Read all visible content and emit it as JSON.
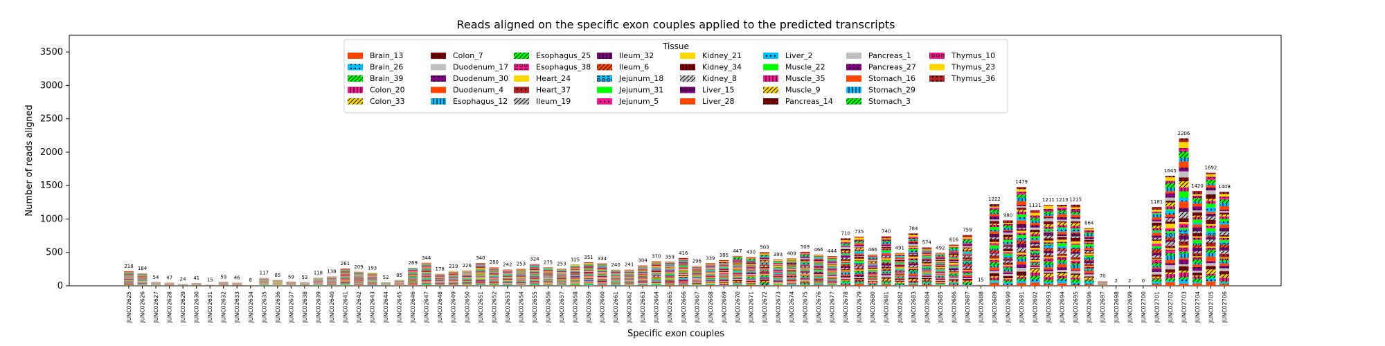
{
  "chart_data": {
    "type": "bar",
    "stacked": true,
    "title": "Reads aligned on the specific exon couples applied to the predicted transcripts",
    "xlabel": "Specific exon couples",
    "ylabel": "Number of reads aligned",
    "ylim": [
      0,
      3750
    ],
    "yticks": [
      0,
      500,
      1000,
      1500,
      2000,
      2500,
      3000,
      3500
    ],
    "legend": {
      "title": "Tissue",
      "placement": "top-center",
      "entries": [
        {
          "label": "Brain_13",
          "color": "#ff4500",
          "hatch": "none"
        },
        {
          "label": "Brain_26",
          "color": "#00bfff",
          "hatch": "dot"
        },
        {
          "label": "Brain_39",
          "color": "#00ff00",
          "hatch": "slash"
        },
        {
          "label": "Colon_20",
          "color": "#ff1493",
          "hatch": "bars"
        },
        {
          "label": "Colon_33",
          "color": "#ffd700",
          "hatch": "slash"
        },
        {
          "label": "Colon_7",
          "color": "#8b0000",
          "hatch": "ring"
        },
        {
          "label": "Duodenum_17",
          "color": "#c0c0c0",
          "hatch": "none"
        },
        {
          "label": "Duodenum_30",
          "color": "#800080",
          "hatch": "dot"
        },
        {
          "label": "Duodenum_4",
          "color": "#ff4500",
          "hatch": "none"
        },
        {
          "label": "Esophagus_12",
          "color": "#00bfff",
          "hatch": "bars"
        },
        {
          "label": "Esophagus_25",
          "color": "#00ff00",
          "hatch": "slash"
        },
        {
          "label": "Esophagus_38",
          "color": "#ff1493",
          "hatch": "ring"
        },
        {
          "label": "Heart_24",
          "color": "#ffd700",
          "hatch": "none"
        },
        {
          "label": "Heart_37",
          "color": "#b22222",
          "hatch": "dot"
        },
        {
          "label": "Ileum_19",
          "color": "#c0c0c0",
          "hatch": "slash"
        },
        {
          "label": "Ileum_32",
          "color": "#800080",
          "hatch": "bars"
        },
        {
          "label": "Ileum_6",
          "color": "#ff4500",
          "hatch": "slash"
        },
        {
          "label": "Jejunum_18",
          "color": "#00bfff",
          "hatch": "ring"
        },
        {
          "label": "Jejunum_31",
          "color": "#00ff00",
          "hatch": "none"
        },
        {
          "label": "Jejunum_5",
          "color": "#ff1493",
          "hatch": "dot"
        },
        {
          "label": "Kidney_21",
          "color": "#ffd700",
          "hatch": "none"
        },
        {
          "label": "Kidney_34",
          "color": "#8b0000",
          "hatch": "bars"
        },
        {
          "label": "Kidney_8",
          "color": "#c0c0c0",
          "hatch": "slash"
        },
        {
          "label": "Liver_15",
          "color": "#800080",
          "hatch": "ring"
        },
        {
          "label": "Liver_28",
          "color": "#ff4500",
          "hatch": "none"
        },
        {
          "label": "Liver_2",
          "color": "#00bfff",
          "hatch": "dot"
        },
        {
          "label": "Muscle_22",
          "color": "#00ff00",
          "hatch": "none"
        },
        {
          "label": "Muscle_35",
          "color": "#ff1493",
          "hatch": "bars"
        },
        {
          "label": "Muscle_9",
          "color": "#ffd700",
          "hatch": "slash"
        },
        {
          "label": "Pancreas_14",
          "color": "#8b0000",
          "hatch": "ring"
        },
        {
          "label": "Pancreas_1",
          "color": "#c0c0c0",
          "hatch": "none"
        },
        {
          "label": "Pancreas_27",
          "color": "#800080",
          "hatch": "dot"
        },
        {
          "label": "Stomach_16",
          "color": "#ff4500",
          "hatch": "none"
        },
        {
          "label": "Stomach_29",
          "color": "#00bfff",
          "hatch": "bars"
        },
        {
          "label": "Stomach_3",
          "color": "#00ff00",
          "hatch": "slash"
        },
        {
          "label": "Thymus_10",
          "color": "#ff1493",
          "hatch": "ring"
        },
        {
          "label": "Thymus_23",
          "color": "#ffd700",
          "hatch": "none"
        },
        {
          "label": "Thymus_36",
          "color": "#b22222",
          "hatch": "dot"
        }
      ]
    },
    "categories": [
      "JUNC02625",
      "JUNC02626",
      "JUNC02627",
      "JUNC02628",
      "JUNC02629",
      "JUNC02630",
      "JUNC02631",
      "JUNC02632",
      "JUNC02633",
      "JUNC02634",
      "JUNC02635",
      "JUNC02636",
      "JUNC02637",
      "JUNC02638",
      "JUNC02639",
      "JUNC02640",
      "JUNC02641",
      "JUNC02642",
      "JUNC02643",
      "JUNC02644",
      "JUNC02645",
      "JUNC02646",
      "JUNC02647",
      "JUNC02648",
      "JUNC02649",
      "JUNC02650",
      "JUNC02651",
      "JUNC02652",
      "JUNC02653",
      "JUNC02654",
      "JUNC02655",
      "JUNC02656",
      "JUNC02657",
      "JUNC02658",
      "JUNC02659",
      "JUNC02660",
      "JUNC02661",
      "JUNC02662",
      "JUNC02663",
      "JUNC02664",
      "JUNC02665",
      "JUNC02666",
      "JUNC02667",
      "JUNC02668",
      "JUNC02669",
      "JUNC02670",
      "JUNC02671",
      "JUNC02672",
      "JUNC02673",
      "JUNC02674",
      "JUNC02675",
      "JUNC02676",
      "JUNC02677",
      "JUNC02678",
      "JUNC02679",
      "JUNC02680",
      "JUNC02681",
      "JUNC02682",
      "JUNC02683",
      "JUNC02684",
      "JUNC02685",
      "JUNC02686",
      "JUNC02687",
      "JUNC02688",
      "JUNC02689",
      "JUNC02690",
      "JUNC02691",
      "JUNC02692",
      "JUNC02693",
      "JUNC02694",
      "JUNC02695",
      "JUNC02696",
      "JUNC02697",
      "JUNC02698",
      "JUNC02699",
      "JUNC02700",
      "JUNC02701",
      "JUNC02702",
      "JUNC02703",
      "JUNC02704",
      "JUNC02705",
      "JUNC02706"
    ],
    "totals": [
      218,
      184,
      54,
      47,
      24,
      41,
      15,
      59,
      46,
      8,
      117,
      85,
      59,
      53,
      118,
      138,
      261,
      209,
      193,
      52,
      85,
      269,
      344,
      178,
      219,
      226,
      340,
      280,
      242,
      253,
      324,
      275,
      253,
      315,
      351,
      334,
      240,
      241,
      304,
      370,
      359,
      416,
      296,
      339,
      385,
      447,
      430,
      503,
      393,
      409,
      509,
      466,
      444,
      710,
      735,
      466,
      740,
      491,
      784,
      574,
      492,
      616,
      759,
      15,
      1222,
      980,
      1479,
      1131,
      1211,
      1213,
      1215,
      864,
      70,
      2,
      2,
      0,
      1181,
      1645,
      2206,
      1420,
      1692,
      1408
    ],
    "total_labels": [
      "218",
      "184",
      "54",
      "47",
      "24",
      "41",
      "15",
      "59",
      "46",
      "8",
      "117",
      "85",
      "59",
      "53",
      "118",
      "138",
      "261",
      "209",
      "193",
      "52",
      "85",
      "269",
      "344",
      "178",
      "219",
      "226",
      "340",
      "280",
      "242",
      "253",
      "324",
      "275",
      "253",
      "315",
      "351",
      "334",
      "240",
      "241",
      "304",
      "370",
      "359",
      "416",
      "296",
      "339",
      "385",
      "447",
      "430",
      "503",
      "393",
      "409",
      "509",
      "466",
      "444",
      "710",
      "735",
      "466",
      "740",
      "491",
      "784",
      "574",
      "492",
      "616",
      "759",
      "15",
      "1222",
      "980",
      "1479",
      "1131",
      "1211",
      "1213",
      "1215",
      "864",
      "70",
      "2",
      "2",
      "0",
      "1181",
      "1645",
      "2206",
      "1420",
      "1692",
      "1408"
    ]
  }
}
